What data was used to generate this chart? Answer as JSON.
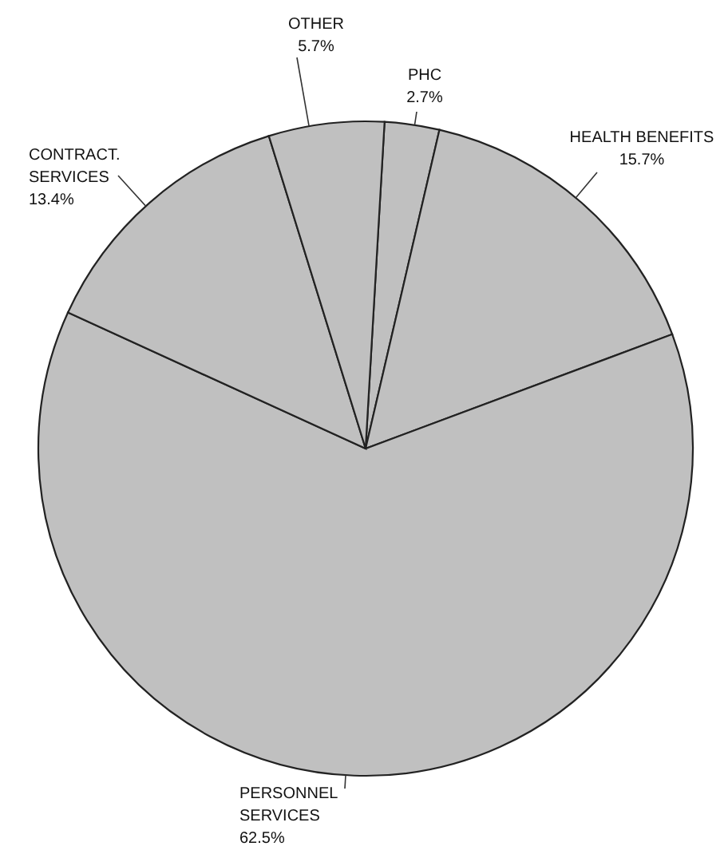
{
  "chart_data": {
    "type": "pie",
    "categories": [
      "PHC",
      "HEALTH BENEFITS",
      "PERSONNEL SERVICES",
      "CONTRACT. SERVICES",
      "OTHER"
    ],
    "values": [
      2.7,
      15.7,
      62.5,
      13.4,
      5.7
    ],
    "value_labels": [
      "2.7%",
      "15.7%",
      "62.5%",
      "13.4%",
      "5.7%"
    ],
    "colors": [
      "#c0c0c0",
      "#c0c0c0",
      "#c0c0c0",
      "#c0c0c0",
      "#c0c0c0"
    ]
  }
}
